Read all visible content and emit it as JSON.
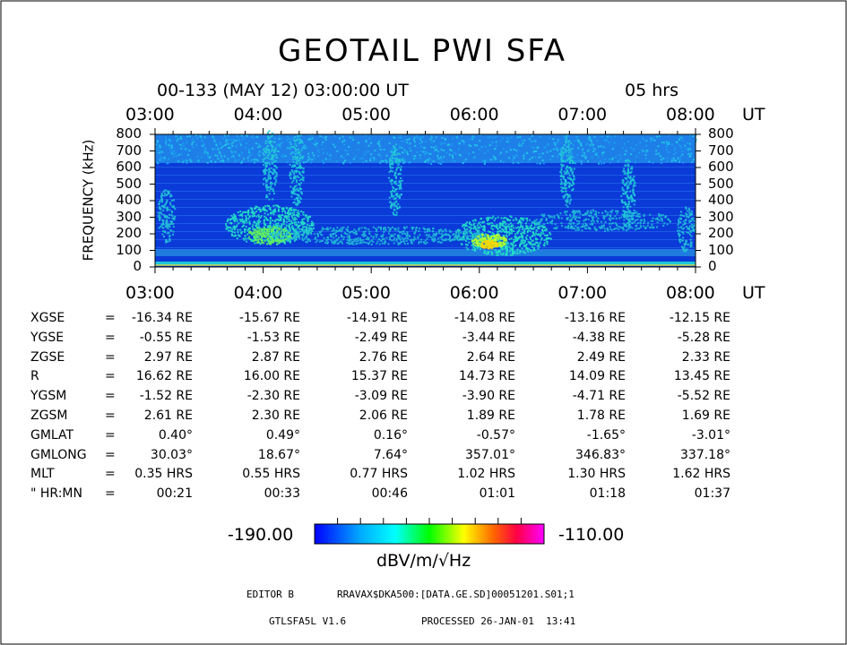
{
  "title": "GEOTAIL PWI SFA",
  "header": {
    "date_time": "00-133 (MAY 12) 03:00:00 UT",
    "duration": "05 hrs"
  },
  "chart_data": {
    "type": "heatmap",
    "title": "GEOTAIL PWI SFA",
    "ylabel": "FREQUENCY (kHz)",
    "xlabel": "UT",
    "x_ticks": [
      "03:00",
      "04:00",
      "05:00",
      "06:00",
      "07:00",
      "08:00"
    ],
    "y_ticks": [
      "800",
      "700",
      "600",
      "500",
      "400",
      "300",
      "200",
      "100",
      "0"
    ],
    "ylim": [
      0,
      800
    ],
    "colorbar": {
      "min": "-190.00",
      "max": "-110.00",
      "unit": "dBV/m/√Hz"
    }
  },
  "ephemeris": {
    "rows": [
      {
        "label": "XGSE",
        "eq": "=",
        "values": [
          "-16.34 RE",
          "-15.67 RE",
          "-14.91 RE",
          "-14.08 RE",
          "-13.16 RE",
          "-12.15 RE"
        ]
      },
      {
        "label": "YGSE",
        "eq": "=",
        "values": [
          "-0.55 RE",
          "-1.53 RE",
          "-2.49 RE",
          "-3.44 RE",
          "-4.38 RE",
          "-5.28 RE"
        ]
      },
      {
        "label": "ZGSE",
        "eq": "=",
        "values": [
          "2.97 RE",
          "2.87 RE",
          "2.76 RE",
          "2.64 RE",
          "2.49 RE",
          "2.33 RE"
        ]
      },
      {
        "label": "R",
        "eq": "=",
        "values": [
          "16.62 RE",
          "16.00 RE",
          "15.37 RE",
          "14.73 RE",
          "14.09 RE",
          "13.45 RE"
        ]
      },
      {
        "label": "YGSM",
        "eq": "=",
        "values": [
          "-1.52 RE",
          "-2.30 RE",
          "-3.09 RE",
          "-3.90 RE",
          "-4.71 RE",
          "-5.52 RE"
        ]
      },
      {
        "label": "ZGSM",
        "eq": "=",
        "values": [
          "2.61 RE",
          "2.30 RE",
          "2.06 RE",
          "1.89 RE",
          "1.78 RE",
          "1.69 RE"
        ]
      },
      {
        "label": "GMLAT",
        "eq": "=",
        "values": [
          "0.40°",
          "0.49°",
          "0.16°",
          "-0.57°",
          "-1.65°",
          "-3.01°"
        ]
      },
      {
        "label": "GMLONG",
        "eq": "=",
        "values": [
          "30.03°",
          "18.67°",
          "7.64°",
          "357.01°",
          "346.83°",
          "337.18°"
        ]
      },
      {
        "label": "MLT",
        "eq": "=",
        "values": [
          "0.35 HRS",
          "0.55 HRS",
          "0.77 HRS",
          "1.02 HRS",
          "1.30 HRS",
          "1.62 HRS"
        ]
      },
      {
        "label": "\" HR:MN",
        "eq": "=",
        "values": [
          "00:21",
          "00:33",
          "00:46",
          "01:01",
          "01:18",
          "01:37"
        ]
      }
    ]
  },
  "footer": {
    "editor": "EDITOR B",
    "path": "RRAVAX$DKA500:[DATA.GE.SD]00051201.S01;1",
    "version": "GTLSFA5L V1.6",
    "processed": "PROCESSED 26-JAN-01  13:41"
  }
}
